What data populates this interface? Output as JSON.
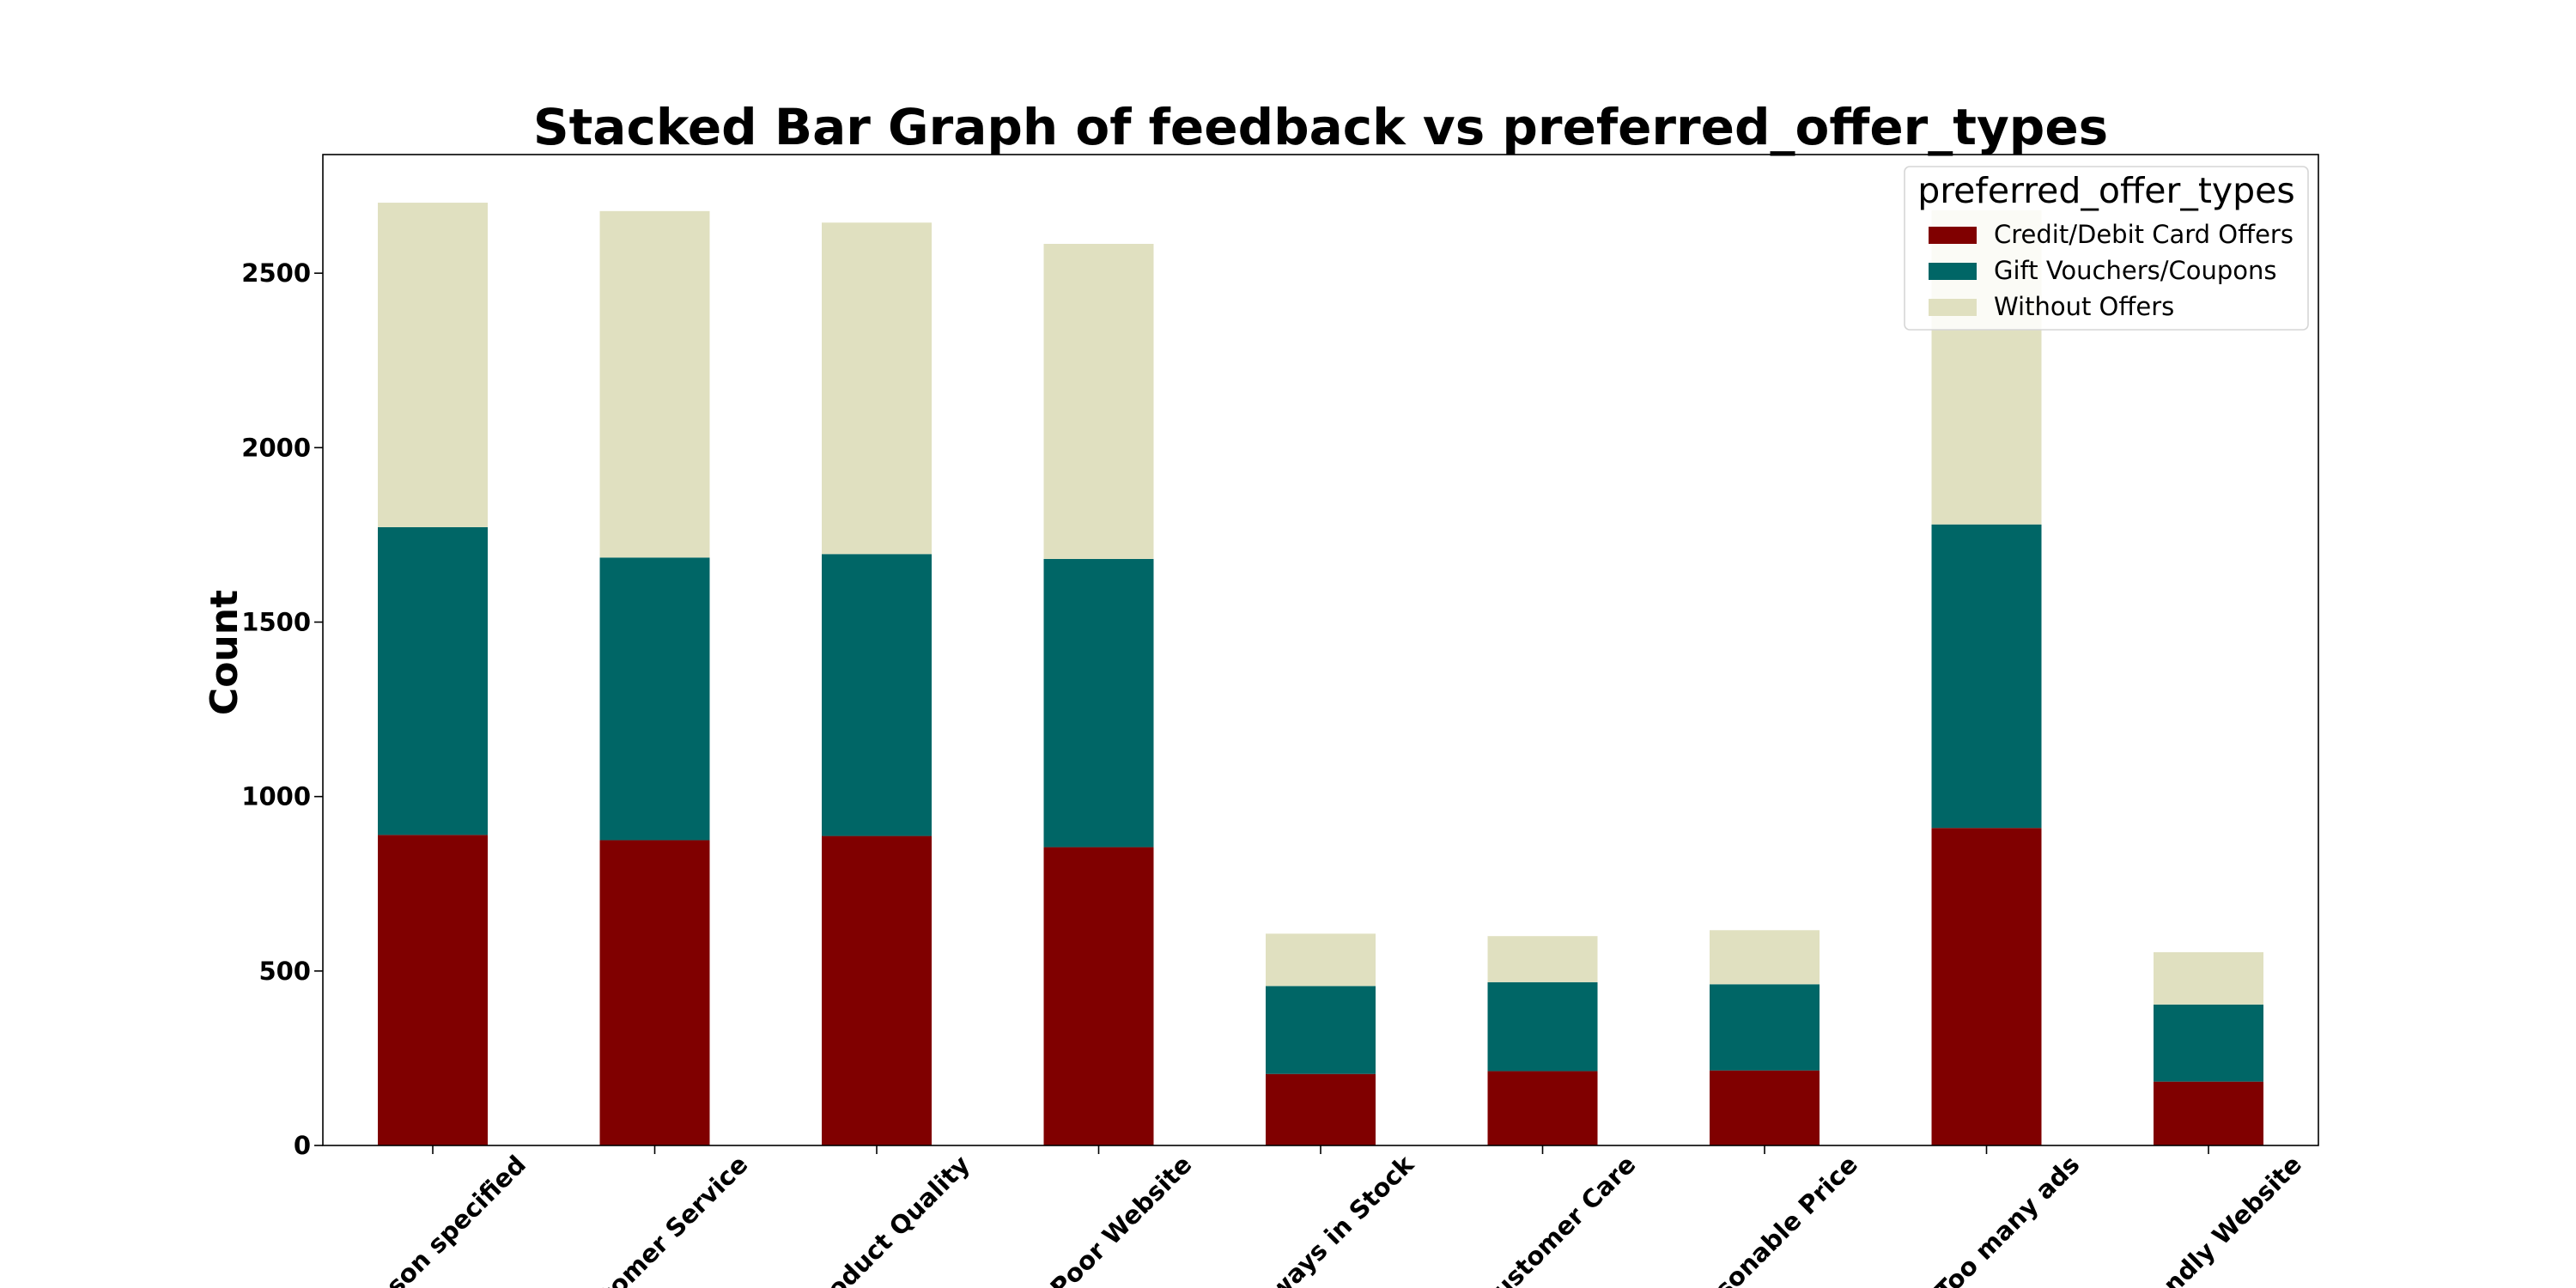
{
  "chart_data": {
    "type": "bar",
    "stacked": true,
    "title": "Stacked Bar Graph of feedback vs preferred_offer_types",
    "xlabel": "",
    "ylabel": "Count",
    "ylim": [
      0,
      2840
    ],
    "yticks": [
      0,
      500,
      1000,
      1500,
      2000,
      2500
    ],
    "categories": [
      "No reason specified",
      "Poor Customer Service",
      "Poor Product Quality",
      "Poor Website",
      "Products always in Stock",
      "Quality Customer Care",
      "Reasonable Price",
      "Too many ads",
      "User Friendly Website"
    ],
    "visible_tick_labels": [
      "son specified",
      "tomer Service",
      "oduct Quality",
      "Poor Website",
      "ways in Stock",
      "ustomer Care",
      "sonable Price",
      "Too many ads",
      "ndly Website"
    ],
    "series": [
      {
        "name": "Credit/Debit Card Offers",
        "color": "#800000",
        "values": [
          890,
          875,
          887,
          855,
          205,
          213,
          215,
          910,
          183
        ]
      },
      {
        "name": "Gift Vouchers/Coupons",
        "color": "#006666",
        "values": [
          882,
          810,
          808,
          826,
          252,
          255,
          247,
          870,
          221
        ]
      },
      {
        "name": "Without Offers",
        "color": "#e0e0c0",
        "values": [
          930,
          993,
          950,
          903,
          150,
          132,
          155,
          900,
          150
        ]
      }
    ],
    "legend": {
      "title": "preferred_offer_types",
      "position": "top-right"
    },
    "grid": false
  }
}
